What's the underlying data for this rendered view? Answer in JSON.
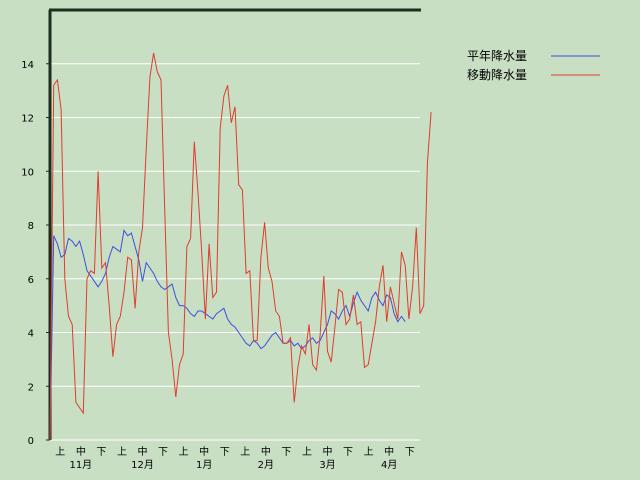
{
  "chart_data": {
    "type": "line",
    "title": "",
    "xlabel": "",
    "ylabel": "",
    "ylim": [
      0,
      16
    ],
    "yticks": [
      "0",
      "2",
      "4",
      "6",
      "8",
      "10",
      "12",
      "14"
    ],
    "ytick_values": [
      0,
      2,
      4,
      6,
      8,
      10,
      12,
      14
    ],
    "grid": true,
    "legend_position": "top-right",
    "xtick_labels": [
      "上",
      "中",
      "下",
      "上",
      "中",
      "下",
      "上",
      "中",
      "下",
      "上",
      "中",
      "下",
      "上",
      "中",
      "下",
      "上",
      "中",
      "下"
    ],
    "months": [
      "11月",
      "12月",
      "1月",
      "2月",
      "3月",
      "4月"
    ],
    "series": [
      {
        "name": "平年降水量",
        "color": "#3c4fe0",
        "values": [
          0.0,
          7.6,
          7.3,
          6.8,
          6.9,
          7.5,
          7.4,
          7.2,
          7.4,
          6.9,
          6.3,
          6.1,
          5.9,
          5.7,
          5.9,
          6.2,
          6.8,
          7.2,
          7.1,
          7.0,
          7.8,
          7.6,
          7.7,
          7.2,
          6.7,
          5.9,
          6.6,
          6.4,
          6.2,
          5.9,
          5.7,
          5.6,
          5.7,
          5.8,
          5.3,
          5.0,
          5.0,
          4.9,
          4.7,
          4.6,
          4.8,
          4.8,
          4.7,
          4.6,
          4.5,
          4.7,
          4.8,
          4.9,
          4.5,
          4.3,
          4.2,
          4.0,
          3.8,
          3.6,
          3.5,
          3.7,
          3.6,
          3.4,
          3.5,
          3.7,
          3.9,
          4.0,
          3.8,
          3.6,
          3.6,
          3.7,
          3.5,
          3.6,
          3.4,
          3.5,
          3.7,
          3.8,
          3.6,
          3.7,
          4.0,
          4.3,
          4.8,
          4.7,
          4.5,
          4.8,
          5.0,
          4.6,
          5.1,
          5.5,
          5.2,
          5.0,
          4.8,
          5.3,
          5.5,
          5.2,
          5.0,
          5.4,
          5.3,
          4.7,
          4.4,
          4.6,
          4.4
        ],
        "start_day": 0
      },
      {
        "name": "移動降水量",
        "color": "#e03c2d",
        "values": [
          0.0,
          13.2,
          13.4,
          12.3,
          6.0,
          4.6,
          4.3,
          1.4,
          1.2,
          1.0,
          6.0,
          6.3,
          6.2,
          10.0,
          6.4,
          6.6,
          5.0,
          3.1,
          4.3,
          4.6,
          5.5,
          6.8,
          6.7,
          4.9,
          7.0,
          7.9,
          10.8,
          13.5,
          14.4,
          13.7,
          13.4,
          8.6,
          4.0,
          3.0,
          1.6,
          2.8,
          3.2,
          7.2,
          7.5,
          11.1,
          9.2,
          7.0,
          4.5,
          7.3,
          5.3,
          5.5,
          11.6,
          12.8,
          13.2,
          11.8,
          12.4,
          9.5,
          9.3,
          6.2,
          6.3,
          3.7,
          3.7,
          6.8,
          8.1,
          6.4,
          5.9,
          4.8,
          4.6,
          3.6,
          3.6,
          3.8,
          1.4,
          2.7,
          3.5,
          3.2,
          4.3,
          2.8,
          2.6,
          3.9,
          6.1,
          3.3,
          2.9,
          4.2,
          5.6,
          5.5,
          4.3,
          4.5,
          5.4,
          4.3,
          4.4,
          2.7,
          2.8,
          3.6,
          4.4,
          5.7,
          6.5,
          4.4,
          5.7,
          5.1,
          4.5,
          7.0,
          6.5,
          4.5,
          5.7,
          7.9,
          4.7,
          5.0,
          10.3,
          12.2
        ],
        "start_day": 0
      }
    ]
  }
}
